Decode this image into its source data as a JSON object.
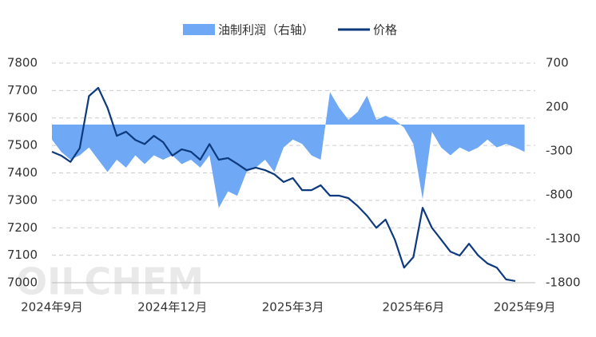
{
  "chart_data": {
    "type": "line-area-dual",
    "watermark": "OILCHEM",
    "categories": [
      "2024年9月",
      null,
      null,
      null,
      null,
      null,
      null,
      null,
      null,
      null,
      null,
      null,
      null,
      "2024年12月",
      null,
      null,
      null,
      null,
      null,
      null,
      null,
      null,
      null,
      null,
      null,
      null,
      "2025年3月",
      null,
      null,
      null,
      null,
      null,
      null,
      null,
      null,
      null,
      null,
      null,
      null,
      "2025年6月",
      null,
      null,
      null,
      null,
      null,
      null,
      null,
      null,
      null,
      null,
      null,
      "2025年9月"
    ],
    "series": [
      {
        "name": "油制利润（右轴）",
        "type": "area",
        "axis": "y2",
        "color": "#6fa8f5",
        "values": [
          -170,
          -310,
          -400,
          -350,
          -260,
          -400,
          -540,
          -400,
          -490,
          -350,
          -450,
          -350,
          -400,
          -350,
          -450,
          -400,
          -490,
          -350,
          -950,
          -760,
          -810,
          -540,
          -490,
          -400,
          -540,
          -260,
          -170,
          -220,
          -350,
          -400,
          370,
          190,
          55,
          145,
          330,
          55,
          100,
          55,
          -35,
          -220,
          -850,
          -80,
          -260,
          -350,
          -260,
          -310,
          -260,
          -170,
          -260,
          -220,
          -260,
          -310
        ]
      },
      {
        "name": "价格",
        "type": "line",
        "color": "#0d3a7d",
        "values": [
          7477,
          7463,
          7440,
          7490,
          7680,
          7710,
          7637,
          7535,
          7550,
          7520,
          7505,
          7535,
          7512,
          7463,
          7486,
          7477,
          7448,
          7505,
          7448,
          7454,
          7433,
          7410,
          7419,
          7410,
          7395,
          7367,
          7381,
          7337,
          7337,
          7355,
          7317,
          7317,
          7308,
          7279,
          7244,
          7200,
          7230,
          7157,
          7055,
          7093,
          7273,
          7200,
          7157,
          7113,
          7099,
          7142,
          7099,
          7070,
          7055,
          7012,
          7006,
          null
        ]
      }
    ],
    "ylim": [
      7000,
      7800
    ],
    "yticks": [
      7000,
      7100,
      7200,
      7300,
      7400,
      7500,
      7600,
      7700,
      7800
    ],
    "y2lim": [
      -1800,
      700
    ],
    "y2ticks": [
      -1800,
      -1300,
      -800,
      -300,
      200,
      700
    ],
    "grid": true,
    "legend": "top"
  }
}
